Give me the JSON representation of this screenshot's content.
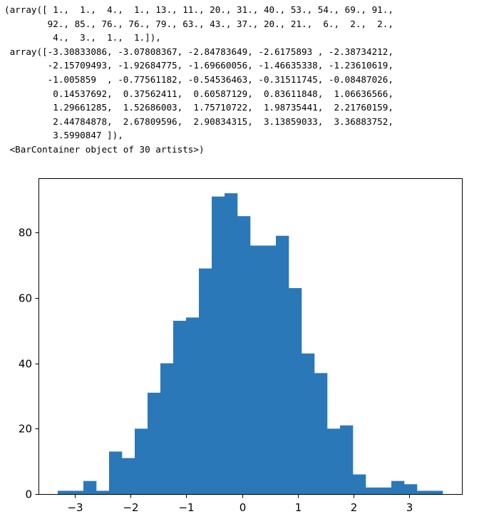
{
  "output": {
    "lines": [
      "(array([ 1.,  1.,  4.,  1., 13., 11., 20., 31., 40., 53., 54., 69., 91.,",
      "        92., 85., 76., 76., 79., 63., 43., 37., 20., 21.,  6.,  2.,  2.,",
      "         4.,  3.,  1.,  1.]),",
      " array([-3.30833086, -3.07808367, -2.84783649, -2.6175893 , -2.38734212,",
      "        -2.15709493, -1.92684775, -1.69660056, -1.46635338, -1.23610619,",
      "        -1.005859  , -0.77561182, -0.54536463, -0.31511745, -0.08487026,",
      "         0.14537692,  0.37562411,  0.60587129,  0.83611848,  1.06636566,",
      "         1.29661285,  1.52686003,  1.75710722,  1.98735441,  2.21760159,",
      "         2.44784878,  2.67809596,  2.90834315,  3.13859033,  3.36883752,",
      "         3.5990847 ]),",
      " <BarContainer object of 30 artists>)"
    ]
  },
  "chart_data": {
    "type": "bar",
    "bar_color": "#2b78b8",
    "counts": [
      1,
      1,
      4,
      1,
      13,
      11,
      20,
      31,
      40,
      53,
      54,
      69,
      91,
      92,
      85,
      76,
      76,
      79,
      63,
      43,
      37,
      20,
      21,
      6,
      2,
      2,
      4,
      3,
      1,
      1
    ],
    "bin_edges": [
      -3.30833086,
      -3.07808367,
      -2.84783649,
      -2.6175893,
      -2.38734212,
      -2.15709493,
      -1.92684775,
      -1.69660056,
      -1.46635338,
      -1.23610619,
      -1.005859,
      -0.77561182,
      -0.54536463,
      -0.31511745,
      -0.08487026,
      0.14537692,
      0.37562411,
      0.60587129,
      0.83611848,
      1.06636566,
      1.29661285,
      1.52686003,
      1.75710722,
      1.98735441,
      2.21760159,
      2.44784878,
      2.67809596,
      2.90834315,
      3.13859033,
      3.36883752,
      3.5990847
    ],
    "x_ticks": [
      -3,
      -2,
      -1,
      0,
      1,
      2,
      3
    ],
    "x_tick_labels": [
      "−3",
      "−2",
      "−1",
      "0",
      "1",
      "2",
      "3"
    ],
    "y_ticks": [
      0,
      20,
      40,
      60,
      80
    ],
    "y_tick_labels": [
      "0",
      "20",
      "40",
      "60",
      "80"
    ],
    "xlim": [
      -3.6537,
      3.9444
    ],
    "ylim": [
      0,
      96.6
    ],
    "grid": false,
    "title": "",
    "xlabel": "",
    "ylabel": ""
  }
}
